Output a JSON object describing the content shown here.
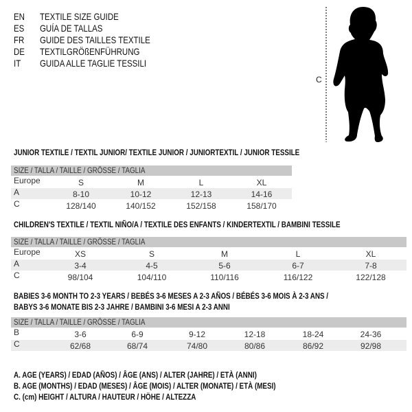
{
  "languages": [
    {
      "code": "EN",
      "name": "TEXTILE SIZE GUIDE"
    },
    {
      "code": "ES",
      "name": "GUÍA DE TALLAS"
    },
    {
      "code": "FR",
      "name": "GUIDE DES TAILLES TEXTILE"
    },
    {
      "code": "DE",
      "name": "TEXTILGRÖßENFÜHRUNG"
    },
    {
      "code": "IT",
      "name": "GUIDA ALLE TAGLIE TESSILI"
    }
  ],
  "figure": {
    "measure_label": "C",
    "icon": "child-silhouette"
  },
  "sections": [
    {
      "title": "JUNIOR TEXTILE / TEXTIL JUNIOR/ TEXTILE JUNIOR / JUNIORTEXTIL / JUNIOR TESSILE",
      "header": "SIZE / TALLA / TAILLE / GRÖSSE / TAGLIA",
      "rows": [
        {
          "label": "Europe",
          "cells": [
            "S",
            "M",
            "L",
            "XL"
          ]
        },
        {
          "label": "A",
          "cells": [
            "8-10",
            "10-12",
            "12-13",
            "14-16"
          ]
        },
        {
          "label": "C",
          "cells": [
            "128/140",
            "140/152",
            "152/158",
            "158/170"
          ]
        }
      ]
    },
    {
      "title": "CHILDREN'S TEXTILE / TEXTIL NIÑO/A / TEXTILE DES ENFANTS / KINDERTEXTIL / BAMBINI TESSILE",
      "header": "SIZE / TALLA / TAILLE / GRÖSSE / TAGLIA",
      "rows": [
        {
          "label": "Europe",
          "cells": [
            "XS",
            "S",
            "M",
            "L",
            "XL"
          ]
        },
        {
          "label": "A",
          "cells": [
            "3-4",
            "4-5",
            "5-6",
            "6-7",
            "7-8"
          ]
        },
        {
          "label": "C",
          "cells": [
            "98/104",
            "104/110",
            "110/116",
            "116/122",
            "122/128"
          ]
        }
      ]
    },
    {
      "title": "BABIES 3-6 MONTH TO 2-3 YEARS / BEBÉS 3-6 MESES A 2-3 AÑOS / BÉBÉS 3-6 MOIS À 2-3 ANS /",
      "title2": "BABYS 3-6 MONATE BIS 2-3 JAHRE / BAMBINI 3-6 MESI A 2-3 ANNI",
      "header": "SIZE / TALLA / TAILLE / GRÖSSE / TAGLIA",
      "rows": [
        {
          "label": "B",
          "cells": [
            "3-6",
            "6-9",
            "9-12",
            "12-18",
            "18-24",
            "24-36"
          ]
        },
        {
          "label": "C",
          "cells": [
            "62/68",
            "68/74",
            "74/80",
            "80/86",
            "86/92",
            "92/98"
          ]
        }
      ]
    }
  ],
  "legend": [
    "A. AGE (YEARS) / EDAD (AÑOS) / ÂGE (ANS) / ALTER (JAHRE) / ETÀ (ANNI)",
    "B. AGE (MONTHS) / EDAD (MESES) / ÂGE (MOIS) / ALTER (MONATE) / ETÀ (MESI)",
    "C. (cm) HEIGHT / ALTURA / HAUTEUR / HÖHE / ALTEZZA"
  ]
}
